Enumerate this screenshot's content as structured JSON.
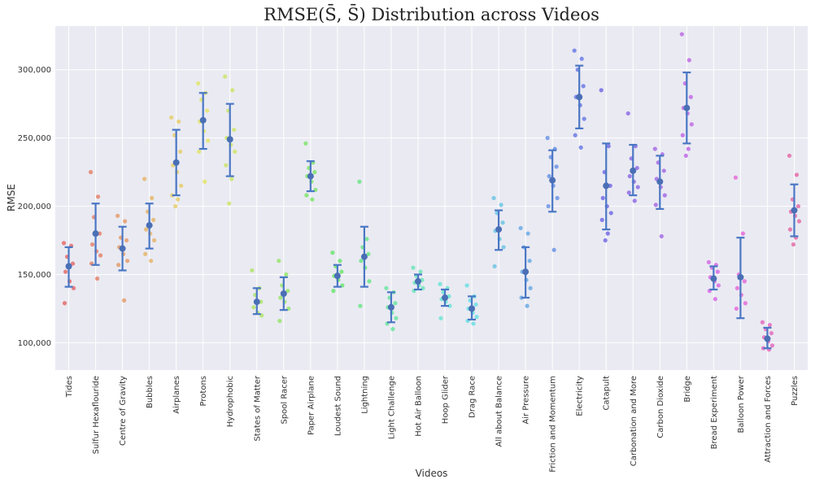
{
  "chart_data": {
    "type": "scatter",
    "title": "RMSE(S̄, S̄) Distribution across Videos",
    "xlabel": "Videos",
    "ylabel": "RMSE",
    "ylim": [
      80000,
      332000
    ],
    "yticks": [
      100000,
      150000,
      200000,
      250000,
      300000
    ],
    "ytick_labels": [
      "100,000",
      "150,000",
      "200,000",
      "250,000",
      "300,000"
    ],
    "grid": true,
    "categories": [
      "Tides",
      "Sulfur Hexaflouride",
      "Centre of Gravity",
      "Bubbles",
      "Airplanes",
      "Protons",
      "Hydrophobic",
      "States of Matter",
      "Spool Racer",
      "Paper Airplane",
      "Loudest Sound",
      "Lightning",
      "Light Challenge",
      "Hot Air Balloon",
      "Hoop Glider",
      "Drag Race",
      "All about Balance",
      "Air Pressure",
      "Friction and Momentum",
      "Electricity",
      "Catapult",
      "Carbonation and More",
      "Carbon Dioxide",
      "Bridge",
      "Bread Experiment",
      "Balloon Power",
      "Attraction and Forces",
      "Puzzles"
    ],
    "series": [
      {
        "mean": 156000,
        "lower": 141000,
        "upper": 170000,
        "points": [
          173000,
          171000,
          163000,
          158000,
          152000,
          145000,
          140000,
          129000
        ]
      },
      {
        "mean": 180000,
        "lower": 157000,
        "upper": 202000,
        "points": [
          225000,
          207000,
          192000,
          180000,
          172000,
          167000,
          164000,
          158000,
          147000
        ]
      },
      {
        "mean": 169000,
        "lower": 153000,
        "upper": 185000,
        "points": [
          193000,
          189000,
          177000,
          175000,
          170000,
          165000,
          160000,
          157000,
          131000
        ]
      },
      {
        "mean": 186000,
        "lower": 169000,
        "upper": 202000,
        "points": [
          220000,
          206000,
          196000,
          190000,
          183000,
          180000,
          175000,
          165000,
          160000
        ]
      },
      {
        "mean": 232000,
        "lower": 208000,
        "upper": 256000,
        "points": [
          265000,
          262000,
          252000,
          240000,
          230000,
          225000,
          215000,
          208000,
          205000,
          200000
        ]
      },
      {
        "mean": 263000,
        "lower": 242000,
        "upper": 283000,
        "points": [
          290000,
          283000,
          278000,
          270000,
          262000,
          255000,
          248000,
          240000,
          218000
        ]
      },
      {
        "mean": 249000,
        "lower": 222000,
        "upper": 275000,
        "points": [
          295000,
          285000,
          270000,
          256000,
          250000,
          245000,
          240000,
          230000,
          220000,
          202000
        ]
      },
      {
        "mean": 130000,
        "lower": 121000,
        "upper": 140000,
        "points": [
          153000,
          140000,
          135000,
          130000,
          126000,
          122000,
          120000
        ]
      },
      {
        "mean": 136000,
        "lower": 124000,
        "upper": 148000,
        "points": [
          160000,
          150000,
          142000,
          138000,
          133000,
          130000,
          125000,
          116000
        ]
      },
      {
        "mean": 222000,
        "lower": 211000,
        "upper": 233000,
        "points": [
          246000,
          232000,
          228000,
          225000,
          222000,
          218000,
          212000,
          208000,
          205000
        ]
      },
      {
        "mean": 149000,
        "lower": 141000,
        "upper": 157000,
        "points": [
          166000,
          160000,
          156000,
          152000,
          149000,
          146000,
          142000,
          138000
        ]
      },
      {
        "mean": 163000,
        "lower": 141000,
        "upper": 185000,
        "points": [
          218000,
          176000,
          170000,
          165000,
          160000,
          155000,
          145000,
          127000
        ]
      },
      {
        "mean": 126000,
        "lower": 115000,
        "upper": 137000,
        "points": [
          140000,
          137000,
          133000,
          129000,
          126000,
          122000,
          118000,
          114000,
          110000
        ]
      },
      {
        "mean": 145000,
        "lower": 139000,
        "upper": 150000,
        "points": [
          155000,
          152000,
          149000,
          146000,
          144000,
          142000,
          140000,
          138000
        ]
      },
      {
        "mean": 133000,
        "lower": 127000,
        "upper": 139000,
        "points": [
          143000,
          140000,
          137000,
          134000,
          132000,
          130000,
          127000,
          118000
        ]
      },
      {
        "mean": 125000,
        "lower": 117000,
        "upper": 134000,
        "points": [
          142000,
          134000,
          131000,
          128000,
          125000,
          122000,
          119000,
          116000,
          114000
        ]
      },
      {
        "mean": 183000,
        "lower": 168000,
        "upper": 197000,
        "points": [
          206000,
          201000,
          195000,
          188000,
          182000,
          176000,
          170000,
          156000
        ]
      },
      {
        "mean": 152000,
        "lower": 133000,
        "upper": 170000,
        "points": [
          184000,
          180000,
          170000,
          160000,
          152000,
          146000,
          140000,
          133000,
          127000
        ]
      },
      {
        "mean": 219000,
        "lower": 196000,
        "upper": 241000,
        "points": [
          250000,
          242000,
          236000,
          229000,
          222000,
          215000,
          206000,
          200000,
          168000
        ]
      },
      {
        "mean": 280000,
        "lower": 257000,
        "upper": 303000,
        "points": [
          314000,
          308000,
          300000,
          288000,
          280000,
          274000,
          264000,
          252000,
          243000
        ]
      },
      {
        "mean": 215000,
        "lower": 183000,
        "upper": 246000,
        "points": [
          285000,
          244000,
          225000,
          215000,
          206000,
          200000,
          195000,
          190000,
          180000,
          175000
        ]
      },
      {
        "mean": 226000,
        "lower": 208000,
        "upper": 245000,
        "points": [
          268000,
          244000,
          235000,
          228000,
          222000,
          218000,
          214000,
          210000,
          204000
        ]
      },
      {
        "mean": 218000,
        "lower": 198000,
        "upper": 237000,
        "points": [
          242000,
          238000,
          232000,
          226000,
          220000,
          214000,
          208000,
          201000,
          178000
        ]
      },
      {
        "mean": 272000,
        "lower": 246000,
        "upper": 298000,
        "points": [
          326000,
          307000,
          290000,
          280000,
          272000,
          268000,
          260000,
          252000,
          242000,
          237000
        ]
      },
      {
        "mean": 147000,
        "lower": 139000,
        "upper": 156000,
        "points": [
          159000,
          157000,
          155000,
          152000,
          148000,
          145000,
          142000,
          138000,
          132000
        ]
      },
      {
        "mean": 148000,
        "lower": 118000,
        "upper": 177000,
        "points": [
          221000,
          180000,
          150000,
          145000,
          140000,
          135000,
          129000,
          125000
        ]
      },
      {
        "mean": 103000,
        "lower": 96000,
        "upper": 111000,
        "points": [
          115000,
          113000,
          110000,
          107000,
          104000,
          101000,
          98000,
          96000,
          95000
        ]
      },
      {
        "mean": 197000,
        "lower": 178000,
        "upper": 216000,
        "points": [
          237000,
          223000,
          205000,
          200000,
          196000,
          193000,
          189000,
          183000,
          177000,
          172000
        ]
      }
    ]
  }
}
